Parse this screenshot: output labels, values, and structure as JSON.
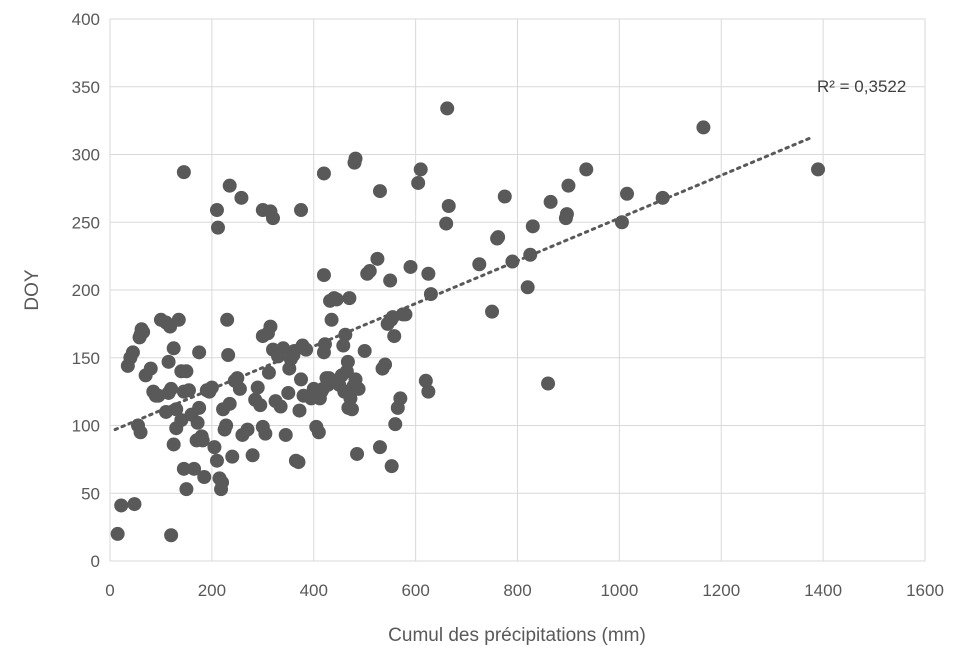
{
  "chart_data": {
    "type": "scatter",
    "title": "",
    "xlabel": "Cumul des précipitations (mm)",
    "ylabel": "DOY",
    "xlim": [
      0,
      1600
    ],
    "ylim": [
      0,
      400
    ],
    "xticks": [
      0,
      200,
      400,
      600,
      800,
      1000,
      1200,
      1400,
      1600
    ],
    "yticks": [
      0,
      50,
      100,
      150,
      200,
      250,
      300,
      350,
      400
    ],
    "grid": true,
    "legend": "none",
    "colors": {
      "point": "#595959",
      "trend": "#595959",
      "grid": "#d9d9d9"
    },
    "trendline": {
      "type": "linear",
      "x_start": 10,
      "x_end": 1380,
      "y_start": 97,
      "y_end": 313,
      "label": "R² = 0,3522"
    },
    "points": [
      [
        15,
        20
      ],
      [
        22,
        41
      ],
      [
        48,
        42
      ],
      [
        120,
        19
      ],
      [
        35,
        144
      ],
      [
        40,
        150
      ],
      [
        45,
        154
      ],
      [
        58,
        165
      ],
      [
        62,
        171
      ],
      [
        60,
        167
      ],
      [
        65,
        169
      ],
      [
        55,
        100
      ],
      [
        60,
        95
      ],
      [
        70,
        137
      ],
      [
        80,
        142
      ],
      [
        85,
        125
      ],
      [
        90,
        122
      ],
      [
        95,
        122
      ],
      [
        100,
        178
      ],
      [
        110,
        176
      ],
      [
        115,
        147
      ],
      [
        118,
        173
      ],
      [
        125,
        157
      ],
      [
        130,
        112
      ],
      [
        135,
        178
      ],
      [
        140,
        140
      ],
      [
        150,
        140
      ],
      [
        145,
        125
      ],
      [
        155,
        126
      ],
      [
        120,
        127
      ],
      [
        110,
        110
      ],
      [
        115,
        124
      ],
      [
        125,
        86
      ],
      [
        130,
        98
      ],
      [
        140,
        104
      ],
      [
        145,
        68
      ],
      [
        150,
        53
      ],
      [
        165,
        68
      ],
      [
        160,
        108
      ],
      [
        170,
        89
      ],
      [
        175,
        113
      ],
      [
        172,
        102
      ],
      [
        175,
        154
      ],
      [
        180,
        92
      ],
      [
        182,
        89
      ],
      [
        185,
        62
      ],
      [
        190,
        126
      ],
      [
        195,
        125
      ],
      [
        200,
        128
      ],
      [
        205,
        84
      ],
      [
        210,
        74
      ],
      [
        215,
        61
      ],
      [
        218,
        53
      ],
      [
        220,
        58
      ],
      [
        222,
        112
      ],
      [
        225,
        97
      ],
      [
        228,
        100
      ],
      [
        230,
        178
      ],
      [
        232,
        152
      ],
      [
        235,
        116
      ],
      [
        240,
        77
      ],
      [
        245,
        133
      ],
      [
        250,
        135
      ],
      [
        255,
        127
      ],
      [
        260,
        93
      ],
      [
        270,
        97
      ],
      [
        280,
        78
      ],
      [
        285,
        119
      ],
      [
        290,
        128
      ],
      [
        295,
        115
      ],
      [
        300,
        99
      ],
      [
        305,
        94
      ],
      [
        300,
        166
      ],
      [
        310,
        168
      ],
      [
        315,
        173
      ],
      [
        312,
        139
      ],
      [
        320,
        156
      ],
      [
        325,
        118
      ],
      [
        330,
        151
      ],
      [
        335,
        114
      ],
      [
        340,
        157
      ],
      [
        345,
        93
      ],
      [
        350,
        124
      ],
      [
        352,
        142
      ],
      [
        355,
        149
      ],
      [
        360,
        152
      ],
      [
        362,
        155
      ],
      [
        365,
        74
      ],
      [
        370,
        73
      ],
      [
        372,
        111
      ],
      [
        375,
        134
      ],
      [
        378,
        159
      ],
      [
        380,
        122
      ],
      [
        385,
        156
      ],
      [
        395,
        120
      ],
      [
        400,
        127
      ],
      [
        405,
        99
      ],
      [
        410,
        95
      ],
      [
        412,
        120
      ],
      [
        415,
        125
      ],
      [
        418,
        127
      ],
      [
        420,
        154
      ],
      [
        422,
        160
      ],
      [
        425,
        135
      ],
      [
        428,
        130
      ],
      [
        430,
        135
      ],
      [
        432,
        192
      ],
      [
        435,
        178
      ],
      [
        440,
        194
      ],
      [
        445,
        193
      ],
      [
        450,
        130
      ],
      [
        455,
        137
      ],
      [
        458,
        159
      ],
      [
        460,
        125
      ],
      [
        462,
        167
      ],
      [
        465,
        140
      ],
      [
        467,
        147
      ],
      [
        468,
        113
      ],
      [
        470,
        194
      ],
      [
        472,
        120
      ],
      [
        475,
        112
      ],
      [
        478,
        129
      ],
      [
        482,
        134
      ],
      [
        485,
        79
      ],
      [
        488,
        127
      ],
      [
        500,
        155
      ],
      [
        505,
        212
      ],
      [
        510,
        214
      ],
      [
        525,
        223
      ],
      [
        530,
        84
      ],
      [
        535,
        142
      ],
      [
        540,
        145
      ],
      [
        545,
        175
      ],
      [
        550,
        207
      ],
      [
        552,
        178
      ],
      [
        555,
        180
      ],
      [
        558,
        166
      ],
      [
        560,
        101
      ],
      [
        565,
        113
      ],
      [
        570,
        120
      ],
      [
        575,
        182
      ],
      [
        580,
        182
      ],
      [
        553,
        70
      ],
      [
        145,
        287
      ],
      [
        210,
        259
      ],
      [
        212,
        246
      ],
      [
        235,
        277
      ],
      [
        258,
        268
      ],
      [
        300,
        259
      ],
      [
        315,
        258
      ],
      [
        320,
        253
      ],
      [
        375,
        259
      ],
      [
        420,
        286
      ],
      [
        480,
        294
      ],
      [
        482,
        297
      ],
      [
        420,
        211
      ],
      [
        530,
        273
      ],
      [
        590,
        217
      ],
      [
        610,
        289
      ],
      [
        605,
        279
      ],
      [
        620,
        133
      ],
      [
        625,
        125
      ],
      [
        625,
        212
      ],
      [
        630,
        197
      ],
      [
        660,
        249
      ],
      [
        665,
        262
      ],
      [
        662,
        334
      ],
      [
        725,
        219
      ],
      [
        750,
        184
      ],
      [
        760,
        238
      ],
      [
        762,
        239
      ],
      [
        775,
        269
      ],
      [
        790,
        221
      ],
      [
        820,
        202
      ],
      [
        825,
        226
      ],
      [
        830,
        247
      ],
      [
        860,
        131
      ],
      [
        865,
        265
      ],
      [
        895,
        253
      ],
      [
        897,
        256
      ],
      [
        900,
        277
      ],
      [
        935,
        289
      ],
      [
        1005,
        250
      ],
      [
        1015,
        271
      ],
      [
        1085,
        268
      ],
      [
        1165,
        320
      ],
      [
        1390,
        289
      ]
    ]
  }
}
